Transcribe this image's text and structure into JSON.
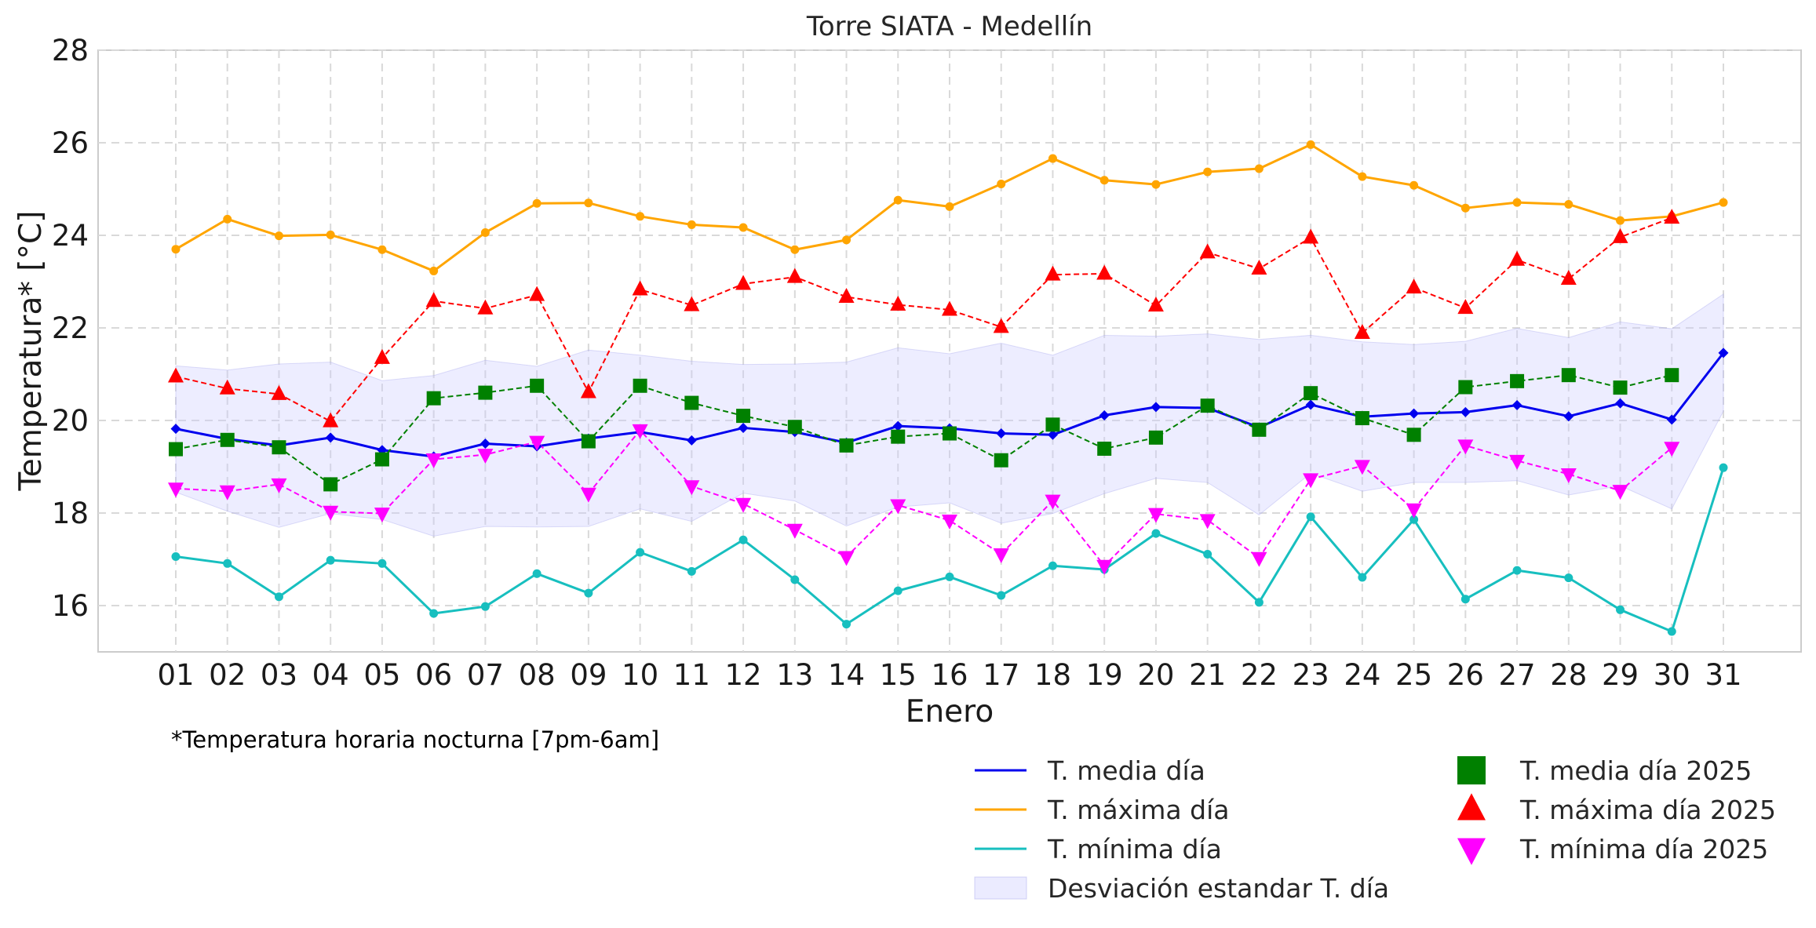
{
  "chart_data": {
    "type": "line",
    "title": "Torre SIATA - Medellín",
    "xlabel": "Enero",
    "ylabel": "Temperatura* [°C]",
    "note": "*Temperatura horaria nocturna [7pm-6am]",
    "ylim": [
      15,
      28
    ],
    "yticks": [
      "16",
      "18",
      "20",
      "22",
      "24",
      "26",
      "28"
    ],
    "grid": true,
    "legend_position": "bottom-right",
    "categories": [
      "01",
      "02",
      "03",
      "04",
      "05",
      "06",
      "07",
      "08",
      "09",
      "10",
      "11",
      "12",
      "13",
      "14",
      "15",
      "16",
      "17",
      "18",
      "19",
      "20",
      "21",
      "22",
      "23",
      "24",
      "25",
      "26",
      "27",
      "28",
      "29",
      "30",
      "31"
    ],
    "series": [
      {
        "name": "T. media día",
        "color": "#0000ee",
        "style": "solid",
        "marker": "diamond",
        "values": [
          19.82,
          19.6,
          19.46,
          19.63,
          19.36,
          19.22,
          19.5,
          19.44,
          19.61,
          19.75,
          19.57,
          19.84,
          19.75,
          19.52,
          19.88,
          19.83,
          19.72,
          19.69,
          20.11,
          20.29,
          20.27,
          19.85,
          20.34,
          20.08,
          20.15,
          20.18,
          20.33,
          20.09,
          20.37,
          20.02,
          21.46
        ]
      },
      {
        "name": "T. máxima día",
        "color": "#ffa500",
        "style": "solid",
        "marker": "dot",
        "values": [
          23.7,
          24.35,
          23.99,
          24.01,
          23.69,
          23.23,
          24.06,
          24.69,
          24.7,
          24.41,
          24.23,
          24.17,
          23.69,
          23.9,
          24.76,
          24.62,
          25.11,
          25.66,
          25.19,
          25.1,
          25.37,
          25.44,
          25.96,
          25.27,
          25.08,
          24.59,
          24.71,
          24.67,
          24.32,
          24.41,
          24.71
        ]
      },
      {
        "name": "T. mínima día",
        "color": "#17bfbf",
        "style": "solid",
        "marker": "dot",
        "values": [
          17.06,
          16.91,
          16.19,
          16.98,
          16.91,
          15.83,
          15.98,
          16.69,
          16.27,
          17.15,
          16.74,
          17.42,
          16.56,
          15.6,
          16.32,
          16.62,
          16.22,
          16.86,
          16.78,
          17.56,
          17.11,
          16.07,
          17.92,
          16.61,
          17.86,
          16.14,
          16.76,
          16.6,
          15.91,
          15.44,
          18.98
        ]
      },
      {
        "name": "Desviación estandar T. día",
        "color": "#ccccff",
        "type": "band",
        "upper": [
          21.18,
          21.09,
          21.22,
          21.26,
          20.86,
          20.97,
          21.3,
          21.17,
          21.52,
          21.41,
          21.28,
          21.21,
          21.22,
          21.26,
          21.57,
          21.44,
          21.67,
          21.41,
          21.84,
          21.82,
          21.87,
          21.75,
          21.84,
          21.7,
          21.64,
          21.71,
          21.99,
          21.79,
          22.13,
          21.98,
          22.73
        ],
        "lower": [
          18.45,
          18.04,
          17.69,
          17.99,
          17.86,
          17.5,
          17.71,
          17.7,
          17.71,
          18.09,
          17.82,
          18.43,
          18.26,
          17.72,
          18.13,
          18.22,
          17.78,
          17.99,
          18.42,
          18.75,
          18.66,
          17.96,
          18.86,
          18.47,
          18.66,
          18.66,
          18.7,
          18.39,
          18.59,
          18.09,
          20.2
        ]
      },
      {
        "name": "T. media día 2025",
        "color": "#008000",
        "style": "dashed",
        "marker": "square",
        "values": [
          19.38,
          19.58,
          19.42,
          18.62,
          19.16,
          20.48,
          20.6,
          20.75,
          19.55,
          20.75,
          20.38,
          20.1,
          19.86,
          19.46,
          19.65,
          19.72,
          19.14,
          19.91,
          19.39,
          19.63,
          20.32,
          19.8,
          20.59,
          20.05,
          19.69,
          20.72,
          20.85,
          20.98,
          20.71,
          20.98,
          null
        ]
      },
      {
        "name": "T. máxima día 2025",
        "color": "#ff0000",
        "style": "dashed",
        "marker": "triangle-up",
        "values": [
          20.95,
          20.69,
          20.57,
          19.98,
          21.35,
          22.58,
          22.42,
          22.71,
          20.61,
          22.83,
          22.49,
          22.95,
          23.1,
          22.67,
          22.5,
          22.39,
          22.02,
          23.15,
          23.17,
          22.48,
          23.63,
          23.28,
          23.95,
          21.89,
          22.87,
          22.43,
          23.47,
          23.06,
          23.96,
          24.38,
          null
        ]
      },
      {
        "name": "T. mínima día 2025",
        "color": "#ff00ff",
        "style": "dashed",
        "marker": "triangle-down",
        "values": [
          18.53,
          18.47,
          18.62,
          18.03,
          17.99,
          19.16,
          19.26,
          19.54,
          18.42,
          19.79,
          18.58,
          18.2,
          17.64,
          17.05,
          18.17,
          17.84,
          17.11,
          18.27,
          16.86,
          17.98,
          17.85,
          17.03,
          18.73,
          19.02,
          18.08,
          19.46,
          19.13,
          18.84,
          18.48,
          19.41,
          null
        ]
      }
    ]
  }
}
